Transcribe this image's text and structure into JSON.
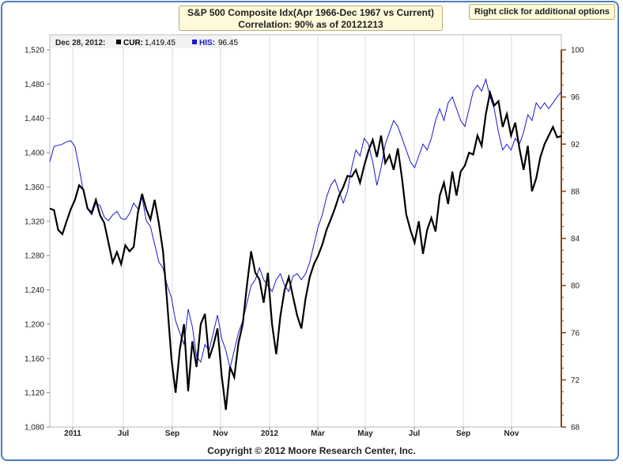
{
  "header": {
    "title_line1": "S&P 500 Composite Idx(Apr 1966-Dec 1967 vs Current)",
    "title_line2": "Correlation: 90% as of 20121213",
    "options_label": "Right click for additional options"
  },
  "readout": {
    "date": "Dec 28, 2012:",
    "cur_label": "CUR:",
    "cur_value": "1,419.45",
    "his_label": "HIS:",
    "his_value": "96.45"
  },
  "footer": {
    "copyright": "Copyright © 2012 Moore Research Center, Inc."
  },
  "colors": {
    "cur": "#000000",
    "his": "#1a1acc",
    "right_axis": "#8b4513",
    "frame": "#4a7fc0"
  },
  "chart_data": {
    "type": "line",
    "x_ticks": [
      "2011",
      "Jul",
      "Sep",
      "Nov",
      "2012",
      "Mar",
      "May",
      "Jul",
      "Sep",
      "Nov"
    ],
    "y_left_ticks": [
      "1,080",
      "1,120",
      "1,160",
      "1,200",
      "1,240",
      "1,280",
      "1,320",
      "1,360",
      "1,400",
      "1,440",
      "1,480",
      "1,520"
    ],
    "y_right_ticks": [
      "68",
      "72",
      "76",
      "80",
      "84",
      "88",
      "92",
      "96",
      "100"
    ],
    "ylim_left": [
      1080,
      1520
    ],
    "ylim_right": [
      68,
      100
    ],
    "grid": "vertical",
    "series": [
      {
        "name": "CUR",
        "axis": "left",
        "points": [
          [
            0,
            1335
          ],
          [
            1,
            1333
          ],
          [
            2,
            1310
          ],
          [
            3,
            1305
          ],
          [
            4,
            1320
          ],
          [
            5,
            1334
          ],
          [
            6,
            1345
          ],
          [
            7,
            1362
          ],
          [
            8,
            1357
          ],
          [
            9,
            1335
          ],
          [
            10,
            1330
          ],
          [
            11,
            1345
          ],
          [
            12,
            1327
          ],
          [
            13,
            1318
          ],
          [
            14,
            1295
          ],
          [
            15,
            1272
          ],
          [
            16,
            1284
          ],
          [
            17,
            1270
          ],
          [
            18,
            1292
          ],
          [
            19,
            1285
          ],
          [
            20,
            1290
          ],
          [
            21,
            1330
          ],
          [
            22,
            1352
          ],
          [
            23,
            1334
          ],
          [
            24,
            1322
          ],
          [
            25,
            1345
          ],
          [
            26,
            1318
          ],
          [
            27,
            1285
          ],
          [
            28,
            1225
          ],
          [
            29,
            1160
          ],
          [
            30,
            1120
          ],
          [
            31,
            1170
          ],
          [
            32,
            1200
          ],
          [
            33,
            1122
          ],
          [
            34,
            1180
          ],
          [
            35,
            1150
          ],
          [
            36,
            1200
          ],
          [
            37,
            1212
          ],
          [
            38,
            1160
          ],
          [
            39,
            1175
          ],
          [
            40,
            1195
          ],
          [
            41,
            1140
          ],
          [
            42,
            1100
          ],
          [
            43,
            1150
          ],
          [
            44,
            1138
          ],
          [
            45,
            1178
          ],
          [
            46,
            1200
          ],
          [
            47,
            1245
          ],
          [
            48,
            1285
          ],
          [
            49,
            1260
          ],
          [
            50,
            1252
          ],
          [
            51,
            1225
          ],
          [
            52,
            1260
          ],
          [
            53,
            1200
          ],
          [
            54,
            1165
          ],
          [
            55,
            1210
          ],
          [
            56,
            1240
          ],
          [
            57,
            1255
          ],
          [
            58,
            1232
          ],
          [
            59,
            1210
          ],
          [
            60,
            1195
          ],
          [
            61,
            1230
          ],
          [
            62,
            1255
          ],
          [
            63,
            1270
          ],
          [
            64,
            1280
          ],
          [
            65,
            1293
          ],
          [
            66,
            1310
          ],
          [
            67,
            1322
          ],
          [
            68,
            1335
          ],
          [
            69,
            1350
          ],
          [
            70,
            1360
          ],
          [
            71,
            1373
          ],
          [
            72,
            1372
          ],
          [
            73,
            1380
          ],
          [
            74,
            1365
          ],
          [
            75,
            1385
          ],
          [
            76,
            1402
          ],
          [
            77,
            1415
          ],
          [
            78,
            1395
          ],
          [
            79,
            1420
          ],
          [
            80,
            1388
          ],
          [
            81,
            1397
          ],
          [
            82,
            1380
          ],
          [
            83,
            1405
          ],
          [
            84,
            1370
          ],
          [
            85,
            1328
          ],
          [
            86,
            1310
          ],
          [
            87,
            1295
          ],
          [
            88,
            1320
          ],
          [
            89,
            1282
          ],
          [
            90,
            1310
          ],
          [
            91,
            1324
          ],
          [
            92,
            1308
          ],
          [
            93,
            1350
          ],
          [
            94,
            1365
          ],
          [
            95,
            1340
          ],
          [
            96,
            1378
          ],
          [
            97,
            1350
          ],
          [
            98,
            1378
          ],
          [
            99,
            1385
          ],
          [
            100,
            1400
          ],
          [
            101,
            1398
          ],
          [
            102,
            1420
          ],
          [
            103,
            1408
          ],
          [
            104,
            1445
          ],
          [
            105,
            1470
          ],
          [
            106,
            1455
          ],
          [
            107,
            1460
          ],
          [
            108,
            1430
          ],
          [
            109,
            1445
          ],
          [
            110,
            1420
          ],
          [
            111,
            1435
          ],
          [
            112,
            1405
          ],
          [
            113,
            1380
          ],
          [
            114,
            1408
          ],
          [
            115,
            1355
          ],
          [
            116,
            1370
          ],
          [
            117,
            1395
          ],
          [
            118,
            1410
          ],
          [
            119,
            1420
          ],
          [
            120,
            1430
          ],
          [
            121,
            1418
          ],
          [
            122,
            1419.45
          ]
        ]
      },
      {
        "name": "HIS",
        "axis": "right",
        "points": [
          [
            0,
            90.5
          ],
          [
            1,
            91.8
          ],
          [
            2,
            91.9
          ],
          [
            3,
            92.0
          ],
          [
            4,
            92.2
          ],
          [
            5,
            92.3
          ],
          [
            6,
            91.8
          ],
          [
            7,
            90.0
          ],
          [
            8,
            88.0
          ],
          [
            9,
            86.5
          ],
          [
            10,
            86.0
          ],
          [
            11,
            87.0
          ],
          [
            12,
            86.8
          ],
          [
            13,
            85.8
          ],
          [
            14,
            85.5
          ],
          [
            15,
            86.0
          ],
          [
            16,
            86.3
          ],
          [
            17,
            85.7
          ],
          [
            18,
            85.6
          ],
          [
            19,
            86.1
          ],
          [
            20,
            87.0
          ],
          [
            21,
            86.5
          ],
          [
            22,
            87.5
          ],
          [
            23,
            85.5
          ],
          [
            24,
            85.0
          ],
          [
            25,
            83.5
          ],
          [
            26,
            82.0
          ],
          [
            27,
            81.5
          ],
          [
            28,
            80.0
          ],
          [
            29,
            79.0
          ],
          [
            30,
            77.0
          ],
          [
            31,
            76.0
          ],
          [
            32,
            75.0
          ],
          [
            33,
            78.0
          ],
          [
            34,
            76.5
          ],
          [
            35,
            74.0
          ],
          [
            36,
            73.5
          ],
          [
            37,
            75.0
          ],
          [
            38,
            74.5
          ],
          [
            39,
            76.0
          ],
          [
            40,
            77.5
          ],
          [
            41,
            75.5
          ],
          [
            42,
            74.5
          ],
          [
            43,
            73.0
          ],
          [
            44,
            74.5
          ],
          [
            45,
            76.0
          ],
          [
            46,
            77.0
          ],
          [
            47,
            78.5
          ],
          [
            48,
            80.0
          ],
          [
            49,
            80.5
          ],
          [
            50,
            81.5
          ],
          [
            51,
            80.5
          ],
          [
            52,
            80.0
          ],
          [
            53,
            79.5
          ],
          [
            54,
            80.5
          ],
          [
            55,
            81.0
          ],
          [
            56,
            80.0
          ],
          [
            57,
            79.5
          ],
          [
            58,
            80.8
          ],
          [
            59,
            81.0
          ],
          [
            60,
            80.5
          ],
          [
            61,
            81.0
          ],
          [
            62,
            82.0
          ],
          [
            63,
            83.5
          ],
          [
            64,
            85.0
          ],
          [
            65,
            86.0
          ],
          [
            66,
            87.5
          ],
          [
            67,
            88.5
          ],
          [
            68,
            89.0
          ],
          [
            69,
            88.0
          ],
          [
            70,
            87.0
          ],
          [
            71,
            88.0
          ],
          [
            72,
            90.0
          ],
          [
            73,
            91.5
          ],
          [
            74,
            91.0
          ],
          [
            75,
            92.5
          ],
          [
            76,
            92.0
          ],
          [
            77,
            90.5
          ],
          [
            78,
            88.5
          ],
          [
            79,
            90.0
          ],
          [
            80,
            92.0
          ],
          [
            81,
            93.0
          ],
          [
            82,
            94.0
          ],
          [
            83,
            93.5
          ],
          [
            84,
            92.5
          ],
          [
            85,
            91.5
          ],
          [
            86,
            90.5
          ],
          [
            87,
            90.0
          ],
          [
            88,
            91.0
          ],
          [
            89,
            92.0
          ],
          [
            90,
            91.5
          ],
          [
            91,
            92.5
          ],
          [
            92,
            94.0
          ],
          [
            93,
            95.0
          ],
          [
            94,
            94.0
          ],
          [
            95,
            95.5
          ],
          [
            96,
            96.0
          ],
          [
            97,
            95.0
          ],
          [
            98,
            94.0
          ],
          [
            99,
            93.5
          ],
          [
            100,
            95.0
          ],
          [
            101,
            96.5
          ],
          [
            102,
            97.0
          ],
          [
            103,
            96.5
          ],
          [
            104,
            97.5
          ],
          [
            105,
            96.0
          ],
          [
            106,
            95.0
          ],
          [
            107,
            93.0
          ],
          [
            108,
            91.5
          ],
          [
            109,
            92.0
          ],
          [
            110,
            91.5
          ],
          [
            111,
            92.5
          ],
          [
            112,
            92.0
          ],
          [
            113,
            93.0
          ],
          [
            114,
            94.5
          ],
          [
            115,
            94.0
          ],
          [
            116,
            95.5
          ],
          [
            117,
            95.0
          ],
          [
            118,
            95.5
          ],
          [
            119,
            95.0
          ],
          [
            120,
            95.5
          ],
          [
            121,
            96.0
          ],
          [
            122,
            96.45
          ]
        ]
      }
    ]
  }
}
